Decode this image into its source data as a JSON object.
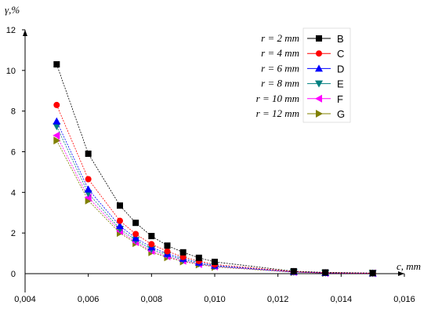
{
  "chart_data": {
    "type": "line",
    "x": [
      0.005,
      0.006,
      0.007,
      0.0075,
      0.008,
      0.0085,
      0.009,
      0.0095,
      0.01,
      0.0125,
      0.0135,
      0.015
    ],
    "xlabel": "c, mm",
    "ylabel": "γ,%",
    "xlim": [
      0.004,
      0.016
    ],
    "ylim": [
      0,
      12
    ],
    "xticks": [
      "0,004",
      "0,006",
      "0,008",
      "0,010",
      "0,012",
      "0,014",
      "0,016"
    ],
    "yticks": [
      "0",
      "2",
      "4",
      "6",
      "8",
      "10",
      "12"
    ],
    "grid": false,
    "legend_position": "top-right",
    "series": [
      {
        "name": "B",
        "label": "r = 2 mm",
        "color": "#000000",
        "marker": "square",
        "values": [
          10.3,
          5.9,
          3.35,
          2.5,
          1.85,
          1.38,
          1.05,
          0.78,
          0.58,
          0.12,
          0.06,
          0.03
        ]
      },
      {
        "name": "C",
        "label": "r = 4 mm",
        "color": "#ff0000",
        "marker": "circle",
        "values": [
          8.3,
          4.65,
          2.6,
          1.95,
          1.45,
          1.1,
          0.82,
          0.62,
          0.45,
          0.1,
          0.05,
          0.02
        ]
      },
      {
        "name": "D",
        "label": "r = 6 mm",
        "color": "#0000ff",
        "marker": "triangle-up",
        "values": [
          7.5,
          4.15,
          2.35,
          1.75,
          1.3,
          0.98,
          0.74,
          0.55,
          0.4,
          0.09,
          0.04,
          0.02
        ]
      },
      {
        "name": "E",
        "label": "r = 8 mm",
        "color": "#008080",
        "marker": "triangle-down",
        "values": [
          7.25,
          3.95,
          2.2,
          1.65,
          1.2,
          0.92,
          0.68,
          0.5,
          0.37,
          0.08,
          0.04,
          0.02
        ]
      },
      {
        "name": "F",
        "label": "r = 10 mm",
        "color": "#ff00ff",
        "marker": "triangle-left",
        "values": [
          6.8,
          3.75,
          2.1,
          1.55,
          1.12,
          0.85,
          0.63,
          0.47,
          0.35,
          0.08,
          0.03,
          0.02
        ]
      },
      {
        "name": "G",
        "label": "r = 12 mm",
        "color": "#808000",
        "marker": "triangle-right",
        "values": [
          6.55,
          3.6,
          2.0,
          1.5,
          1.05,
          0.8,
          0.6,
          0.45,
          0.33,
          0.07,
          0.03,
          0.02
        ]
      }
    ]
  }
}
